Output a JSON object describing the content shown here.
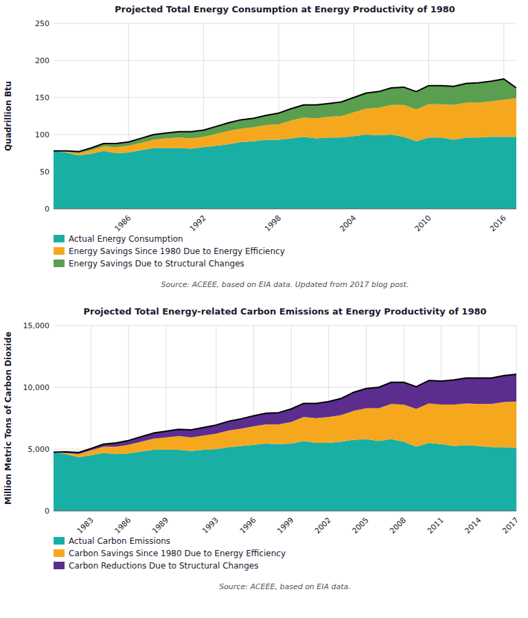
{
  "chart_data": [
    {
      "type": "area",
      "stacked": true,
      "grid": true,
      "title": "Projected Total Energy Consumption at Energy Productivity of 1980",
      "y_label": "Quadrillion Btu",
      "x": [
        1980,
        1981,
        1982,
        1983,
        1984,
        1985,
        1986,
        1987,
        1988,
        1989,
        1990,
        1991,
        1992,
        1993,
        1994,
        1995,
        1996,
        1997,
        1998,
        1999,
        2000,
        2001,
        2002,
        2003,
        2004,
        2005,
        2006,
        2007,
        2008,
        2009,
        2010,
        2011,
        2012,
        2013,
        2014,
        2015,
        2016,
        2017
      ],
      "xlim": [
        1980,
        2017
      ],
      "xticks": [
        1986,
        1992,
        1998,
        2004,
        2010,
        2016
      ],
      "ylim": [
        0,
        250
      ],
      "yticks": [
        0,
        50,
        100,
        150,
        200,
        250
      ],
      "series": [
        {
          "name": "Actual Energy Consumption",
          "color": "#1aafa5",
          "values": [
            78,
            76,
            72,
            74,
            78,
            75,
            76,
            79,
            82,
            82,
            82,
            81,
            83,
            85,
            87,
            90,
            91,
            93,
            93,
            95,
            97,
            95,
            96,
            96,
            98,
            100,
            99,
            100,
            97,
            91,
            96,
            96,
            93,
            96,
            96,
            97,
            97,
            97
          ]
        },
        {
          "name": "Energy Savings Since 1980 Due to Energy Efficiency",
          "color": "#f5a81e",
          "values": [
            0,
            1,
            3,
            5,
            6,
            8,
            9,
            10,
            11,
            13,
            14,
            14,
            14,
            16,
            18,
            18,
            19,
            20,
            21,
            24,
            26,
            27,
            28,
            29,
            32,
            35,
            37,
            40,
            43,
            43,
            45,
            45,
            47,
            47,
            47,
            48,
            50,
            52
          ]
        },
        {
          "name": "Energy Savings Due to Structural Changes",
          "color": "#5a9e4f",
          "values": [
            0,
            1,
            2,
            3,
            4,
            5,
            5,
            6,
            7,
            7,
            8,
            9,
            9,
            10,
            11,
            12,
            12,
            13,
            15,
            16,
            17,
            18,
            18,
            19,
            20,
            21,
            22,
            23,
            24,
            24,
            25,
            25,
            25,
            26,
            27,
            27,
            28,
            14
          ]
        }
      ],
      "source": "Source: ACEEE, based on EIA data. Updated from 2017 blog post."
    },
    {
      "type": "area",
      "stacked": true,
      "grid": true,
      "title": "Projected Total Energy-related Carbon Emissions at Energy Productivity of 1980",
      "y_label": "Million Metric Tons of Carbon Dioxide",
      "x": [
        1980,
        1981,
        1982,
        1983,
        1984,
        1985,
        1986,
        1987,
        1988,
        1989,
        1990,
        1991,
        1992,
        1993,
        1994,
        1995,
        1996,
        1997,
        1998,
        1999,
        2000,
        2001,
        2002,
        2003,
        2004,
        2005,
        2006,
        2007,
        2008,
        2009,
        2010,
        2011,
        2012,
        2013,
        2014,
        2015,
        2016,
        2017
      ],
      "xlim": [
        1980,
        2017
      ],
      "xticks": [
        1983,
        1986,
        1989,
        1993,
        1996,
        1999,
        2002,
        2005,
        2008,
        2011,
        2014,
        2017
      ],
      "ylim": [
        0,
        15000
      ],
      "yticks": [
        0,
        {
          "value": 5000,
          "label": "5,000"
        },
        {
          "value": 10000,
          "label": "10,000"
        },
        {
          "value": 15000,
          "label": "15,000"
        }
      ],
      "series": [
        {
          "name": "Actual Carbon Emissions",
          "color": "#1aafa5",
          "values": [
            4750,
            4600,
            4350,
            4500,
            4700,
            4600,
            4650,
            4800,
            4950,
            4950,
            4950,
            4850,
            4950,
            5000,
            5150,
            5250,
            5350,
            5450,
            5400,
            5450,
            5650,
            5500,
            5500,
            5600,
            5750,
            5800,
            5650,
            5800,
            5600,
            5200,
            5500,
            5400,
            5250,
            5300,
            5250,
            5150,
            5150,
            5100
          ]
        },
        {
          "name": "Carbon Savings Since 1980 Due to Energy Efficiency",
          "color": "#f5a81e",
          "values": [
            0,
            100,
            250,
            400,
            500,
            600,
            700,
            800,
            900,
            1000,
            1100,
            1100,
            1150,
            1250,
            1350,
            1400,
            1500,
            1550,
            1600,
            1750,
            1950,
            2000,
            2100,
            2150,
            2350,
            2500,
            2650,
            2850,
            3000,
            3050,
            3200,
            3200,
            3350,
            3400,
            3400,
            3500,
            3650,
            3750
          ]
        },
        {
          "name": "Carbon Reductions Due to Structural Changes",
          "color": "#5b2d8e",
          "values": [
            0,
            80,
            120,
            150,
            200,
            300,
            350,
            400,
            450,
            500,
            550,
            600,
            650,
            700,
            750,
            800,
            850,
            900,
            950,
            1050,
            1100,
            1200,
            1250,
            1350,
            1500,
            1600,
            1700,
            1750,
            1800,
            1800,
            1850,
            1900,
            2000,
            2050,
            2100,
            2100,
            2150,
            2200
          ]
        }
      ],
      "source": "Source: ACEEE, based on EIA data."
    }
  ]
}
